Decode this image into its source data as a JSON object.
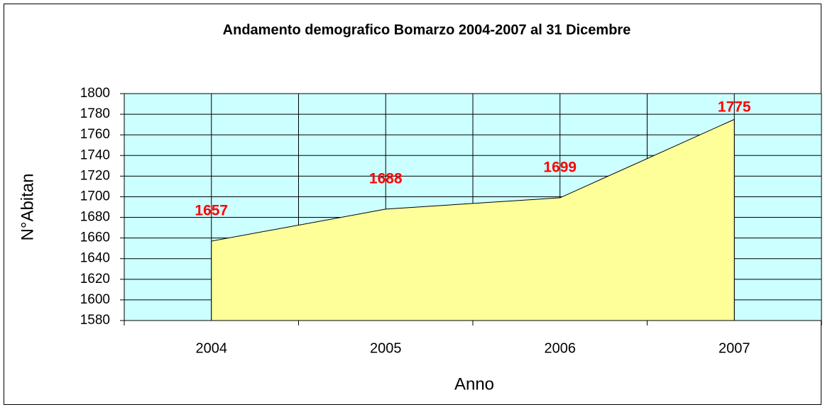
{
  "chart_data": {
    "type": "area",
    "title": "Andamento demografico Bomarzo 2004-2007 al 31 Dicembre",
    "xlabel": "Anno",
    "ylabel": "N°Abitan",
    "categories": [
      "2004",
      "2005",
      "2006",
      "2007"
    ],
    "values": [
      1657,
      1688,
      1699,
      1775
    ],
    "color": "#ffff99",
    "label_color": "#ff0000",
    "background": "#ccffff",
    "ylim": [
      1580,
      1800
    ],
    "yticks": [
      1580,
      1600,
      1620,
      1640,
      1660,
      1680,
      1700,
      1720,
      1740,
      1760,
      1780,
      1800
    ],
    "grid": true
  }
}
